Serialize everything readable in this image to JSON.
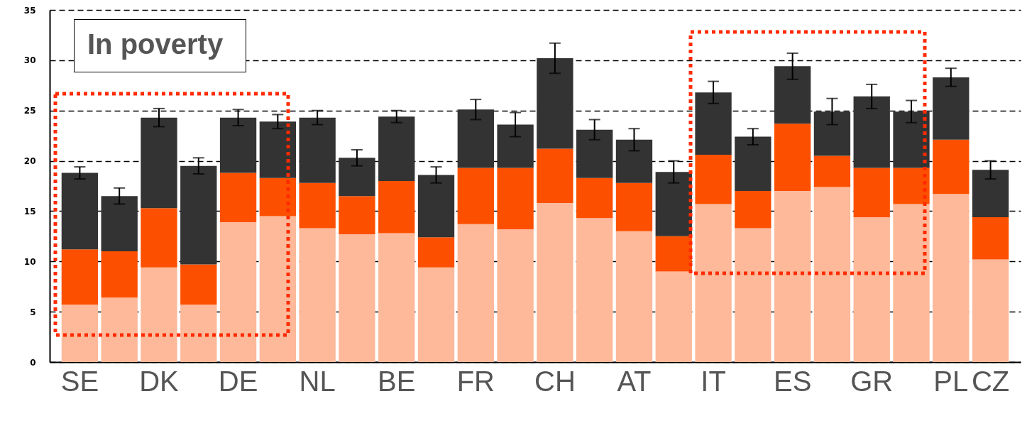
{
  "chart_data": {
    "type": "bar",
    "stacked": true,
    "categories": [
      "SE",
      null,
      "DK",
      null,
      "DE",
      null,
      "NL",
      null,
      "BE",
      null,
      "FR",
      null,
      "CH",
      null,
      "AT",
      null,
      "IT",
      null,
      "ES",
      null,
      "GR",
      null,
      "PL",
      "CZ"
    ],
    "series": [
      {
        "color": "#fdb99a",
        "values": [
          5.7,
          6.4,
          9.4,
          5.7,
          13.9,
          14.5,
          13.3,
          12.7,
          12.8,
          9.4,
          13.7,
          13.2,
          15.8,
          14.3,
          13.0,
          9.0,
          15.7,
          13.3,
          17.0,
          17.4,
          14.4,
          15.7,
          16.7,
          10.2
        ]
      },
      {
        "color": "#fc5000",
        "values": [
          5.5,
          4.6,
          5.9,
          4.0,
          4.9,
          3.8,
          4.5,
          3.8,
          5.2,
          3.0,
          5.6,
          6.1,
          5.4,
          4.0,
          4.8,
          3.5,
          4.9,
          3.7,
          6.7,
          3.1,
          4.9,
          3.6,
          5.4,
          4.2
        ]
      },
      {
        "color": "#333333",
        "values": [
          7.6,
          5.5,
          9.0,
          9.8,
          5.5,
          5.6,
          6.5,
          3.8,
          6.4,
          6.2,
          5.8,
          4.3,
          9.0,
          4.8,
          4.3,
          6.4,
          6.2,
          5.4,
          5.7,
          4.4,
          7.1,
          5.6,
          6.2,
          4.7
        ],
        "errors": [
          0.6,
          0.8,
          0.9,
          0.8,
          0.8,
          0.7,
          0.7,
          0.8,
          0.6,
          0.8,
          1.0,
          1.2,
          1.5,
          1.0,
          1.1,
          1.1,
          1.1,
          0.8,
          1.3,
          1.3,
          1.2,
          1.1,
          0.9,
          0.9
        ]
      }
    ],
    "ylim": [
      0,
      35
    ],
    "yticks": [
      0,
      5,
      10,
      15,
      20,
      25,
      30,
      35
    ],
    "grid": "y",
    "annotations": [
      "In poverty"
    ]
  }
}
